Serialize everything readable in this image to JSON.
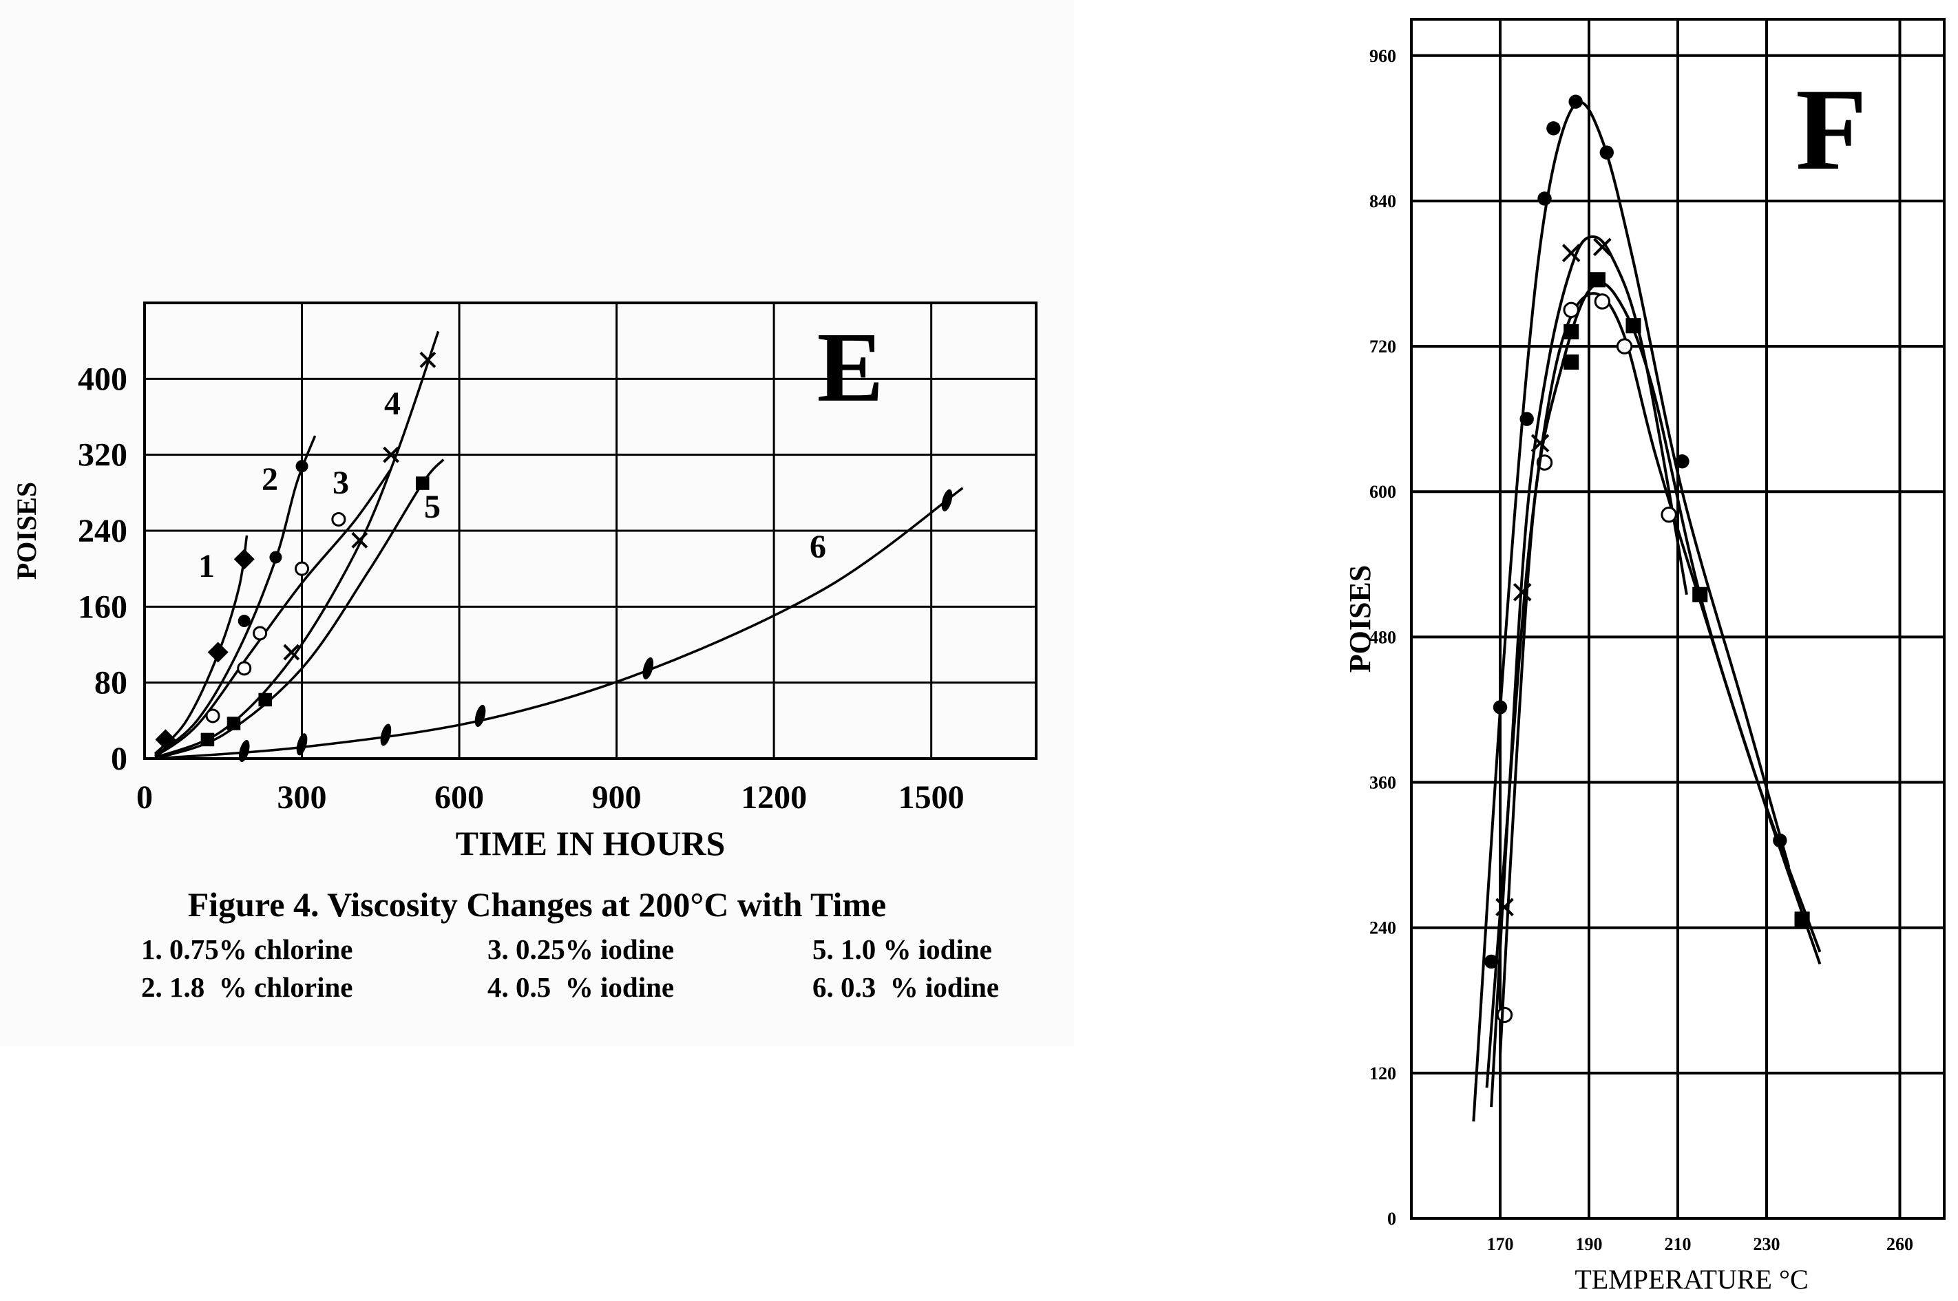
{
  "chart_data": [
    {
      "id": "E",
      "type": "scatter",
      "panel_letter": "E",
      "title": "Figure 4. Viscosity Changes at 200°C with Time",
      "xlabel": "TIME IN HOURS",
      "ylabel": "POISES",
      "xlim": [
        0,
        1700
      ],
      "ylim": [
        0,
        480
      ],
      "xticks": [
        0,
        300,
        600,
        900,
        1200,
        1500
      ],
      "yticks": [
        0,
        80,
        160,
        240,
        320,
        400
      ],
      "grid": true,
      "legend": [
        "1. 0.75% chlorine",
        "2. 1.8  % chlorine",
        "3. 0.25% iodine",
        "4. 0.5  % iodine",
        "5. 1.0 % iodine",
        "6. 0.3  % iodine"
      ],
      "series": [
        {
          "name": "1",
          "label": "1",
          "marker": "diamond",
          "points": [
            [
              40,
              20
            ],
            [
              140,
              112
            ],
            [
              190,
              210
            ]
          ],
          "curve": [
            [
              20,
              5
            ],
            [
              80,
              40
            ],
            [
              140,
              110
            ],
            [
              180,
              180
            ],
            [
              195,
              235
            ]
          ]
        },
        {
          "name": "2",
          "label": "2",
          "marker": "dot",
          "points": [
            [
              190,
              145
            ],
            [
              250,
              212
            ],
            [
              300,
              308
            ]
          ],
          "curve": [
            [
              20,
              3
            ],
            [
              100,
              40
            ],
            [
              180,
              115
            ],
            [
              250,
              210
            ],
            [
              290,
              290
            ],
            [
              325,
              340
            ]
          ]
        },
        {
          "name": "3",
          "label": "3",
          "marker": "circle",
          "points": [
            [
              130,
              45
            ],
            [
              190,
              95
            ],
            [
              220,
              132
            ],
            [
              300,
              200
            ],
            [
              370,
              252
            ]
          ],
          "curve": [
            [
              20,
              2
            ],
            [
              100,
              35
            ],
            [
              200,
              110
            ],
            [
              300,
              185
            ],
            [
              400,
              250
            ],
            [
              470,
              305
            ]
          ]
        },
        {
          "name": "4",
          "label": "4",
          "marker": "x",
          "points": [
            [
              280,
              112
            ],
            [
              410,
              230
            ],
            [
              470,
              320
            ],
            [
              540,
              420
            ]
          ],
          "curve": [
            [
              20,
              1
            ],
            [
              150,
              30
            ],
            [
              280,
              105
            ],
            [
              400,
              215
            ],
            [
              480,
              320
            ],
            [
              560,
              450
            ]
          ]
        },
        {
          "name": "5",
          "label": "5",
          "marker": "square",
          "points": [
            [
              120,
              20
            ],
            [
              170,
              37
            ],
            [
              230,
              62
            ],
            [
              530,
              290
            ]
          ],
          "curve": [
            [
              20,
              0
            ],
            [
              150,
              25
            ],
            [
              300,
              95
            ],
            [
              430,
              200
            ],
            [
              530,
              290
            ],
            [
              570,
              315
            ]
          ]
        },
        {
          "name": "6",
          "label": "6",
          "marker": "ellipse",
          "points": [
            [
              190,
              8
            ],
            [
              300,
              15
            ],
            [
              460,
              25
            ],
            [
              640,
              45
            ],
            [
              960,
              95
            ],
            [
              1530,
              272
            ]
          ],
          "curve": [
            [
              20,
              0
            ],
            [
              300,
              12
            ],
            [
              640,
              40
            ],
            [
              960,
              93
            ],
            [
              1300,
              180
            ],
            [
              1560,
              285
            ]
          ]
        }
      ]
    },
    {
      "id": "F",
      "type": "scatter",
      "panel_letter": "F",
      "title": "",
      "xlabel": "TEMPERATURE  °C",
      "ylabel": "POISES",
      "xlim": [
        150,
        270
      ],
      "ylim": [
        0,
        990
      ],
      "xticks": [
        170,
        190,
        210,
        230,
        260
      ],
      "yticks": [
        0,
        120,
        240,
        360,
        480,
        600,
        720,
        840,
        960
      ],
      "grid": true,
      "series": [
        {
          "name": "dot",
          "marker": "dot",
          "points": [
            [
              168,
              212
            ],
            [
              170,
              422
            ],
            [
              176,
              660
            ],
            [
              180,
              842
            ],
            [
              182,
              900
            ],
            [
              187,
              922
            ],
            [
              194,
              880
            ],
            [
              211,
              625
            ],
            [
              233,
              312
            ]
          ],
          "curve": [
            [
              164,
              80
            ],
            [
              170,
              420
            ],
            [
              176,
              700
            ],
            [
              181,
              850
            ],
            [
              187,
              920
            ],
            [
              193,
              890
            ],
            [
              200,
              790
            ],
            [
              211,
              600
            ],
            [
              225,
              420
            ],
            [
              235,
              290
            ]
          ]
        },
        {
          "name": "x",
          "marker": "x",
          "points": [
            [
              171,
              257
            ],
            [
              175,
              517
            ],
            [
              179,
              640
            ],
            [
              186,
              797
            ],
            [
              193,
              802
            ]
          ],
          "curve": [
            [
              168,
              92
            ],
            [
              172,
              350
            ],
            [
              176,
              580
            ],
            [
              181,
              710
            ],
            [
              186,
              785
            ],
            [
              190,
              810
            ],
            [
              195,
              795
            ],
            [
              202,
              720
            ],
            [
              212,
              515
            ]
          ]
        },
        {
          "name": "circle",
          "marker": "circle",
          "points": [
            [
              171,
              168
            ],
            [
              180,
              624
            ],
            [
              186,
              750
            ],
            [
              193,
              757
            ],
            [
              198,
              720
            ],
            [
              208,
              581
            ]
          ],
          "curve": [
            [
              167,
              108
            ],
            [
              171,
              300
            ],
            [
              176,
              535
            ],
            [
              181,
              675
            ],
            [
              186,
              745
            ],
            [
              192,
              763
            ],
            [
              198,
              728
            ],
            [
              205,
              630
            ],
            [
              215,
              510
            ],
            [
              228,
              360
            ],
            [
              242,
              220
            ]
          ]
        },
        {
          "name": "square",
          "marker": "square",
          "points": [
            [
              186,
              707
            ],
            [
              186,
              732
            ],
            [
              192,
              775
            ],
            [
              200,
              737
            ],
            [
              215,
              515
            ],
            [
              238,
              247
            ]
          ],
          "curve": [
            [
              170,
              135
            ],
            [
              174,
              400
            ],
            [
              178,
              600
            ],
            [
              184,
              705
            ],
            [
              190,
              766
            ],
            [
              196,
              762
            ],
            [
              204,
              690
            ],
            [
              215,
              515
            ],
            [
              228,
              360
            ],
            [
              242,
              210
            ]
          ]
        }
      ]
    }
  ]
}
